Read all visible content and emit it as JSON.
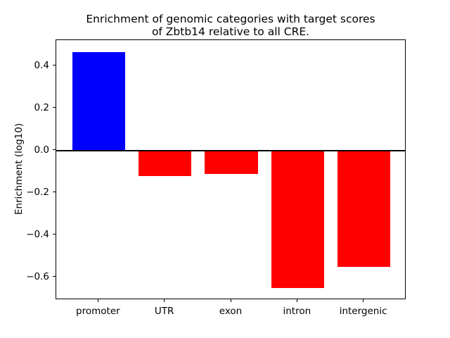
{
  "title": {
    "line1": "Enrichment of genomic categories with target scores",
    "line2": "of Zbtb14 relative to all CRE."
  },
  "chart_data": {
    "type": "bar",
    "title": "Enrichment of genomic categories with target scores\nof Zbtb14 relative to all CRE.",
    "categories": [
      "promoter",
      "UTR",
      "exon",
      "intron",
      "intergenic"
    ],
    "values": [
      0.465,
      -0.12,
      -0.11,
      -0.65,
      -0.55
    ],
    "bar_colors": [
      "#0000ff",
      "#ff0000",
      "#ff0000",
      "#ff0000",
      "#ff0000"
    ],
    "xlabel": "",
    "ylabel": "Enrichment (log10)",
    "ylim": [
      -0.707,
      0.523
    ],
    "xlim": [
      -0.64,
      4.64
    ],
    "bar_width": 0.8,
    "yticks": [
      {
        "value": 0.4,
        "label": "0.4"
      },
      {
        "value": 0.2,
        "label": "0.2"
      },
      {
        "value": 0.0,
        "label": "0.0"
      },
      {
        "value": -0.2,
        "label": "−0.2"
      },
      {
        "value": -0.4,
        "label": "−0.4"
      },
      {
        "value": -0.6,
        "label": "−0.6"
      }
    ],
    "zero_line": {
      "value": 0.0,
      "color": "#000000"
    },
    "grid": false,
    "legend": null,
    "background": "#ffffff",
    "axes_edge_color": "#000000"
  }
}
